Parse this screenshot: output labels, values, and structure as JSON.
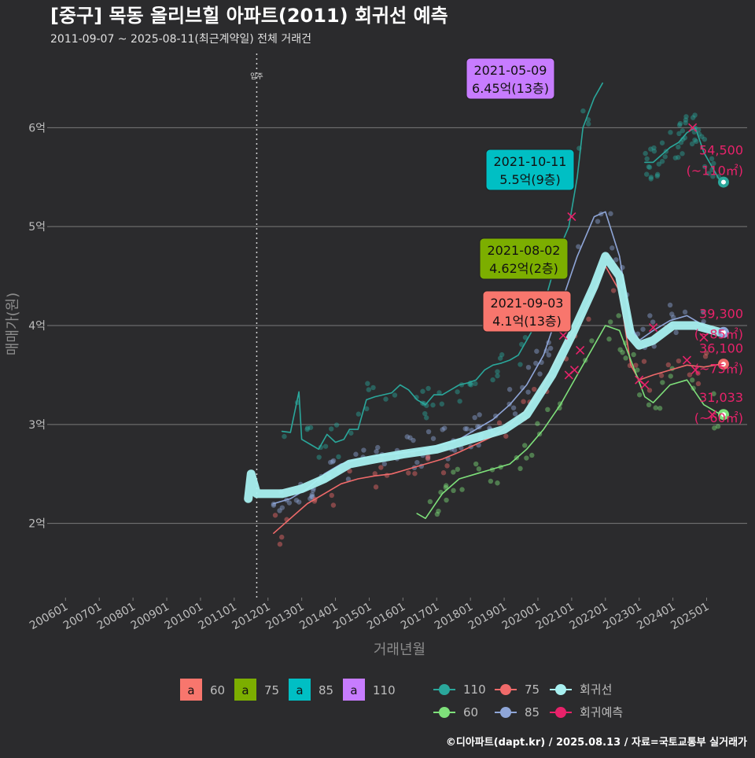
{
  "header": {
    "title": "[중구] 목동 올리브힐 아파트(2011) 회귀선 예측",
    "subtitle": "2011-09-07 ~ 2025-08-11(최근계약일) 전체 거래건"
  },
  "footer": {
    "credit": "©디아파트(dapt.kr) / 2025.08.13 / 자료=국토교통부 실거래가"
  },
  "colors": {
    "background": "#2b2b2d",
    "s60": "#7ee07a",
    "s75": "#f06a6a",
    "s85": "#8fa6d8",
    "s110": "#2aa79b",
    "regression": "#a8f0f0",
    "forecast": "#e8226a",
    "box60": "#f8766d",
    "box75": "#7cae00",
    "box85": "#00bfc4",
    "box110": "#c77cff"
  },
  "chart_data": {
    "type": "line",
    "title": "[중구] 목동 올리브힐 아파트(2011) 회귀선 예측",
    "subtitle": "2011-09-07 ~ 2025-08-11(최근계약일) 전체 거래건",
    "xlabel": "거래년월",
    "ylabel": "매매가(원)",
    "x_tick_labels": [
      "200601",
      "200701",
      "200801",
      "200901",
      "201001",
      "201101",
      "201201",
      "201301",
      "201401",
      "201501",
      "201601",
      "201701",
      "201801",
      "201901",
      "202001",
      "202101",
      "202201",
      "202301",
      "202401",
      "202501"
    ],
    "y_ticks": [
      {
        "value": 2,
        "label": "2억"
      },
      {
        "value": 3,
        "label": "3억"
      },
      {
        "value": 4,
        "label": "4억"
      },
      {
        "value": 5,
        "label": "5억"
      },
      {
        "value": 6,
        "label": "6억"
      }
    ],
    "xlim": [
      2005.55,
      2026.2
    ],
    "ylim": [
      1.25,
      6.75
    ],
    "y_unit": "억",
    "grid": "horizontal",
    "vline": {
      "x": "2011-09",
      "label": "입주"
    },
    "series": [
      {
        "name": "110",
        "color_key": "s110",
        "points": [
          [
            "2012-06",
            2.93
          ],
          [
            "2012-09",
            2.92
          ],
          [
            "2012-12",
            3.33
          ],
          [
            "2013-01",
            2.85
          ],
          [
            "2013-04",
            2.8
          ],
          [
            "2013-07",
            2.75
          ],
          [
            "2013-10",
            2.9
          ],
          [
            "2014-01",
            2.82
          ],
          [
            "2014-04",
            2.85
          ],
          [
            "2014-06",
            2.95
          ],
          [
            "2014-09",
            2.95
          ],
          [
            "2014-12",
            3.25
          ],
          [
            "2015-03",
            3.28
          ],
          [
            "2015-06",
            3.3
          ],
          [
            "2015-09",
            3.32
          ],
          [
            "2015-12",
            3.4
          ],
          [
            "2016-03",
            3.35
          ],
          [
            "2016-06",
            3.25
          ],
          [
            "2016-09",
            3.2
          ],
          [
            "2016-12",
            3.3
          ],
          [
            "2017-03",
            3.3
          ],
          [
            "2017-06",
            3.35
          ],
          [
            "2017-09",
            3.4
          ],
          [
            "2017-12",
            3.42
          ],
          [
            "2018-03",
            3.45
          ],
          [
            "2018-06",
            3.55
          ],
          [
            "2018-09",
            3.6
          ],
          [
            "2018-12",
            3.62
          ],
          [
            "2019-03",
            3.65
          ],
          [
            "2019-06",
            3.7
          ],
          [
            "2019-09",
            3.85
          ],
          [
            "2019-12",
            4.0
          ],
          [
            "2020-03",
            4.2
          ],
          [
            "2020-06",
            4.5
          ],
          [
            "2020-09",
            4.8
          ],
          [
            "2020-12",
            5.0
          ],
          [
            "2021-03",
            5.5
          ],
          [
            "2021-05",
            6.0
          ],
          [
            "2021-09",
            6.3
          ],
          [
            "2021-12",
            6.45
          ]
        ]
      },
      {
        "name": "110b",
        "color_key": "s110",
        "points": [
          [
            "2023-03",
            5.65
          ],
          [
            "2023-06",
            5.65
          ],
          [
            "2023-12",
            5.8
          ],
          [
            "2024-03",
            5.85
          ],
          [
            "2024-06",
            5.95
          ],
          [
            "2024-09",
            6.0
          ],
          [
            "2024-12",
            5.75
          ],
          [
            "2025-03",
            5.6
          ],
          [
            "2025-06",
            5.45
          ]
        ]
      },
      {
        "name": "85",
        "color_key": "s85",
        "points": [
          [
            "2012-03",
            2.2
          ],
          [
            "2012-09",
            2.25
          ],
          [
            "2013-03",
            2.35
          ],
          [
            "2013-09",
            2.5
          ],
          [
            "2014-03",
            2.6
          ],
          [
            "2014-09",
            2.65
          ],
          [
            "2015-03",
            2.68
          ],
          [
            "2015-09",
            2.7
          ],
          [
            "2016-03",
            2.72
          ],
          [
            "2016-09",
            2.75
          ],
          [
            "2017-03",
            2.8
          ],
          [
            "2017-09",
            2.85
          ],
          [
            "2018-03",
            2.95
          ],
          [
            "2018-09",
            3.05
          ],
          [
            "2019-03",
            3.2
          ],
          [
            "2019-09",
            3.4
          ],
          [
            "2020-03",
            3.7
          ],
          [
            "2020-09",
            4.2
          ],
          [
            "2021-03",
            4.7
          ],
          [
            "2021-09",
            5.1
          ],
          [
            "2022-01",
            5.15
          ],
          [
            "2022-06",
            4.7
          ],
          [
            "2022-10",
            4.0
          ],
          [
            "2023-01",
            3.85
          ],
          [
            "2023-06",
            3.95
          ],
          [
            "2023-12",
            4.05
          ],
          [
            "2024-06",
            4.1
          ],
          [
            "2024-12",
            4.0
          ],
          [
            "2025-06",
            3.93
          ]
        ]
      },
      {
        "name": "75",
        "color_key": "s75",
        "points": [
          [
            "2012-03",
            1.9
          ],
          [
            "2012-09",
            2.05
          ],
          [
            "2013-03",
            2.2
          ],
          [
            "2013-09",
            2.3
          ],
          [
            "2014-03",
            2.4
          ],
          [
            "2014-09",
            2.45
          ],
          [
            "2015-03",
            2.48
          ],
          [
            "2015-09",
            2.5
          ],
          [
            "2016-03",
            2.55
          ],
          [
            "2016-09",
            2.6
          ],
          [
            "2017-03",
            2.65
          ],
          [
            "2017-09",
            2.72
          ],
          [
            "2018-03",
            2.8
          ],
          [
            "2018-09",
            2.88
          ],
          [
            "2019-03",
            3.0
          ],
          [
            "2019-09",
            3.15
          ],
          [
            "2020-03",
            3.4
          ],
          [
            "2020-09",
            3.75
          ],
          [
            "2021-03",
            4.0
          ],
          [
            "2021-09",
            4.35
          ],
          [
            "2022-01",
            4.6
          ],
          [
            "2022-06",
            4.35
          ],
          [
            "2022-10",
            3.6
          ],
          [
            "2023-01",
            3.45
          ],
          [
            "2023-06",
            3.5
          ],
          [
            "2023-12",
            3.55
          ],
          [
            "2024-06",
            3.6
          ],
          [
            "2024-12",
            3.58
          ],
          [
            "2025-06",
            3.61
          ]
        ]
      },
      {
        "name": "60",
        "color_key": "s60",
        "points": [
          [
            "2016-06",
            2.1
          ],
          [
            "2016-09",
            2.05
          ],
          [
            "2017-03",
            2.3
          ],
          [
            "2017-09",
            2.45
          ],
          [
            "2018-03",
            2.5
          ],
          [
            "2018-09",
            2.55
          ],
          [
            "2019-03",
            2.6
          ],
          [
            "2019-09",
            2.75
          ],
          [
            "2020-03",
            2.95
          ],
          [
            "2020-09",
            3.2
          ],
          [
            "2021-03",
            3.5
          ],
          [
            "2021-09",
            3.8
          ],
          [
            "2022-01",
            4.0
          ],
          [
            "2022-06",
            3.95
          ],
          [
            "2023-03",
            3.28
          ],
          [
            "2023-06",
            3.22
          ],
          [
            "2023-12",
            3.4
          ],
          [
            "2024-06",
            3.45
          ],
          [
            "2024-12",
            3.2
          ],
          [
            "2025-06",
            3.1
          ]
        ]
      },
      {
        "name": "회귀선",
        "color_key": "regression",
        "points": [
          [
            "2011-06",
            2.25
          ],
          [
            "2011-07",
            2.5
          ],
          [
            "2011-09",
            2.3
          ],
          [
            "2012-06",
            2.3
          ],
          [
            "2013-01",
            2.35
          ],
          [
            "2013-09",
            2.45
          ],
          [
            "2014-06",
            2.6
          ],
          [
            "2015-03",
            2.65
          ],
          [
            "2016-01",
            2.7
          ],
          [
            "2017-01",
            2.75
          ],
          [
            "2018-01",
            2.85
          ],
          [
            "2019-01",
            2.95
          ],
          [
            "2019-09",
            3.1
          ],
          [
            "2020-06",
            3.5
          ],
          [
            "2021-01",
            3.9
          ],
          [
            "2021-09",
            4.4
          ],
          [
            "2022-01",
            4.7
          ],
          [
            "2022-06",
            4.5
          ],
          [
            "2022-10",
            3.9
          ],
          [
            "2023-01",
            3.8
          ],
          [
            "2023-06",
            3.85
          ],
          [
            "2024-01",
            4.0
          ],
          [
            "2024-09",
            4.0
          ],
          [
            "2025-06",
            3.93
          ]
        ]
      }
    ],
    "forecast_marks": [
      [
        "2021-01",
        5.1
      ],
      [
        "2020-10",
        3.9
      ],
      [
        "2021-04",
        3.75
      ],
      [
        "2020-12",
        3.5
      ],
      [
        "2021-02",
        3.55
      ],
      [
        "2023-01",
        3.45
      ],
      [
        "2023-03",
        3.4
      ],
      [
        "2023-06",
        3.98
      ],
      [
        "2024-06",
        3.65
      ],
      [
        "2024-09",
        3.55
      ],
      [
        "2024-08",
        6.0
      ],
      [
        "2024-12",
        3.88
      ],
      [
        "2025-03",
        3.1
      ]
    ],
    "end_points": [
      {
        "x": "2025-07",
        "y": 5.45,
        "color_key": "s110"
      },
      {
        "x": "2025-07",
        "y": 3.93,
        "color_key": "s85"
      },
      {
        "x": "2025-07",
        "y": 3.61,
        "color_key": "s75"
      },
      {
        "x": "2025-07",
        "y": 3.1,
        "color_key": "s60"
      }
    ],
    "end_labels": [
      {
        "value": "54,500",
        "area": "(~110㎡)",
        "y": 5.6
      },
      {
        "value": "39,300",
        "area": "(~85㎡)",
        "y": 3.95
      },
      {
        "value": "36,100",
        "area": "(~75㎡)",
        "y": 3.6
      },
      {
        "value": "31,033",
        "area": "(~60㎡)",
        "y": 3.1
      }
    ],
    "callouts": [
      {
        "date": "2021-05-09",
        "price": "6.45억(13층)",
        "color_key": "box110",
        "x": "2021-05",
        "y": 6.45
      },
      {
        "date": "2021-10-11",
        "price": "5.5억(9층)",
        "color_key": "box85",
        "x": "2021-10",
        "y": 5.5
      },
      {
        "date": "2021-08-02",
        "price": "4.62억(2층)",
        "color_key": "box75",
        "x": "2021-08",
        "y": 4.62
      },
      {
        "date": "2021-09-03",
        "price": "4.1억(13층)",
        "color_key": "box60",
        "x": "2021-09",
        "y": 4.1
      }
    ],
    "legend_boxes": [
      {
        "glyph": "a",
        "label": "60",
        "color_key": "box60"
      },
      {
        "glyph": "a",
        "label": "75",
        "color_key": "box75"
      },
      {
        "glyph": "a",
        "label": "85",
        "color_key": "box85"
      },
      {
        "glyph": "a",
        "label": "110",
        "color_key": "box110"
      }
    ],
    "legend_lines": [
      {
        "label": "110",
        "color_key": "s110"
      },
      {
        "label": "75",
        "color_key": "s75"
      },
      {
        "label": "회귀선",
        "color_key": "regression"
      },
      {
        "label": "60",
        "color_key": "s60"
      },
      {
        "label": "85",
        "color_key": "s85"
      },
      {
        "label": "회귀예측",
        "color_key": "forecast"
      }
    ]
  }
}
